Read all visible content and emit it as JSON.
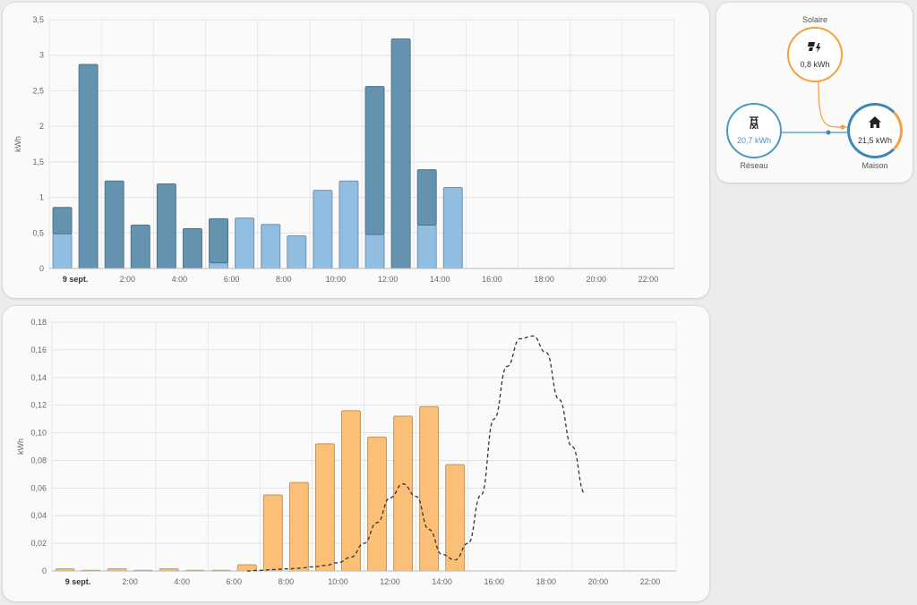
{
  "chart_data": [
    {
      "type": "bar",
      "ylabel": "kWh",
      "ylim": [
        0,
        3.5
      ],
      "yticks": [
        "0",
        "0,5",
        "1",
        "1,5",
        "2",
        "2,5",
        "3",
        "3,5"
      ],
      "xtick_labels": [
        "9 sept.",
        "2:00",
        "4:00",
        "6:00",
        "8:00",
        "10:00",
        "12:00",
        "14:00",
        "16:00",
        "18:00",
        "20:00",
        "22:00"
      ],
      "hours": [
        0,
        1,
        2,
        3,
        4,
        5,
        6,
        7,
        8,
        9,
        10,
        11,
        12,
        13,
        14,
        15
      ],
      "series": [
        {
          "color": "#90bde0",
          "values": [
            0.49,
            0,
            0,
            0,
            0,
            0,
            0.08,
            0.71,
            0.62,
            0.46,
            1.1,
            1.23,
            0.48,
            0,
            0.61,
            1.14
          ]
        },
        {
          "color": "#6493b0",
          "values": [
            0.37,
            2.87,
            1.23,
            0.61,
            1.19,
            0.56,
            0.62,
            0,
            0,
            0,
            0,
            0,
            2.08,
            3.23,
            0.78,
            0
          ]
        }
      ]
    },
    {
      "type": "bar",
      "ylabel": "kWh",
      "ylim": [
        0,
        0.18
      ],
      "yticks": [
        "0",
        "0,02",
        "0,04",
        "0,06",
        "0,08",
        "0,10",
        "0,12",
        "0,14",
        "0,16",
        "0,18"
      ],
      "xtick_labels": [
        "9 sept.",
        "2:00",
        "4:00",
        "6:00",
        "8:00",
        "10:00",
        "12:00",
        "14:00",
        "16:00",
        "18:00",
        "20:00",
        "22:00"
      ],
      "hours": [
        0,
        1,
        2,
        3,
        4,
        5,
        6,
        7,
        8,
        9,
        10,
        11,
        12,
        13,
        14,
        15
      ],
      "series": [
        {
          "color": "#fbbf77",
          "values": [
            0.0015,
            0.0005,
            0.0015,
            0.0005,
            0.0015,
            0.0005,
            0.0005,
            0.0045,
            0.055,
            0.064,
            0.092,
            0.116,
            0.097,
            0.112,
            0.119,
            0.077
          ]
        }
      ],
      "forecast": {
        "style": "dashed",
        "color": "#333333",
        "x": [
          7,
          7.5,
          8,
          8.5,
          9,
          9.5,
          10,
          10.5,
          11,
          11.5,
          12,
          12.5,
          13,
          13.5,
          14,
          14.5,
          15,
          15.5,
          16,
          16.5,
          17,
          17.5,
          18,
          18.5,
          19,
          19.5,
          20
        ],
        "y": [
          0,
          0.0005,
          0.001,
          0.0015,
          0.002,
          0.003,
          0.004,
          0.006,
          0.01,
          0.02,
          0.035,
          0.053,
          0.063,
          0.054,
          0.03,
          0.012,
          0.008,
          0.02,
          0.055,
          0.11,
          0.148,
          0.168,
          0.17,
          0.158,
          0.124,
          0.09,
          0.056
        ]
      }
    }
  ],
  "energy_flow": {
    "solar": {
      "label": "Solaire",
      "value": "0,8 kWh",
      "icon": "solar-power-icon",
      "color": "#f4a03c"
    },
    "grid": {
      "label": "Réseau",
      "value": "20,7 kWh",
      "icon": "transmission-tower-icon",
      "color": "#4a97c2"
    },
    "home": {
      "label": "Maison",
      "value": "21,5 kWh",
      "icon": "home-icon",
      "color": "#3f86b5"
    }
  }
}
